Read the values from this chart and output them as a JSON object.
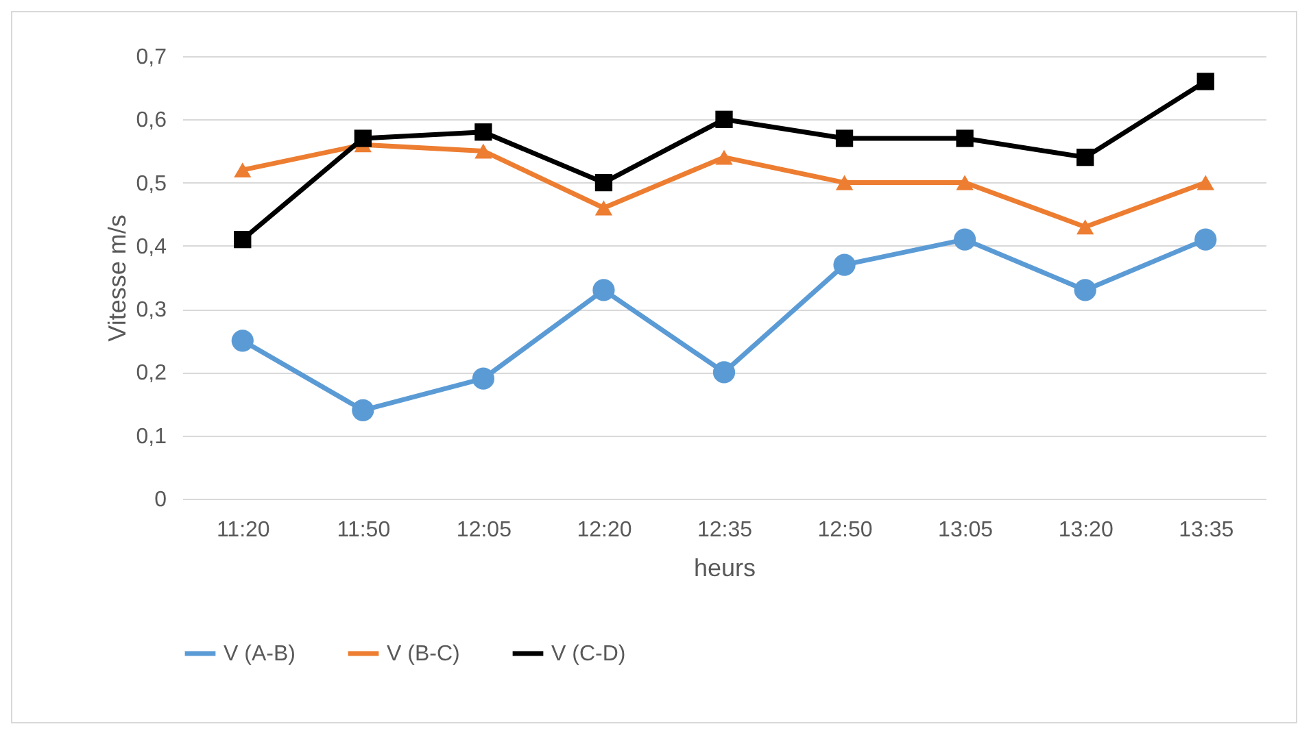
{
  "chart_data": {
    "type": "line",
    "xlabel": "heurs",
    "ylabel": "Vitesse m/s",
    "categories": [
      "11:20",
      "11:50",
      "12:05",
      "12:20",
      "12:35",
      "12:50",
      "13:05",
      "13:20",
      "13:35"
    ],
    "series": [
      {
        "name": "V (A-B)",
        "color": "#5b9bd5",
        "marker": "circle",
        "values": [
          0.25,
          0.14,
          0.19,
          0.33,
          0.2,
          0.37,
          0.41,
          0.33,
          0.41
        ]
      },
      {
        "name": "V (B-C)",
        "color": "#ed7d31",
        "marker": "triangle",
        "values": [
          0.52,
          0.56,
          0.55,
          0.46,
          0.54,
          0.5,
          0.5,
          0.43,
          0.5
        ]
      },
      {
        "name": "V (C-D)",
        "color": "#000000",
        "marker": "square",
        "values": [
          0.41,
          0.57,
          0.58,
          0.5,
          0.6,
          0.57,
          0.57,
          0.54,
          0.66
        ]
      }
    ],
    "ylim": [
      0,
      0.7
    ],
    "yticks": [
      0,
      {
        "value": 0.1,
        "label": "0,1"
      },
      {
        "value": 0.2,
        "label": "0,2"
      },
      {
        "value": 0.3,
        "label": "0,3"
      },
      {
        "value": 0.4,
        "label": "0,4"
      },
      {
        "value": 0.5,
        "label": "0,5"
      },
      {
        "value": 0.6,
        "label": "0,6"
      },
      {
        "value": 0.7,
        "label": "0,7"
      }
    ],
    "grid": "y",
    "legend": "bottom",
    "line_style": "solid"
  }
}
